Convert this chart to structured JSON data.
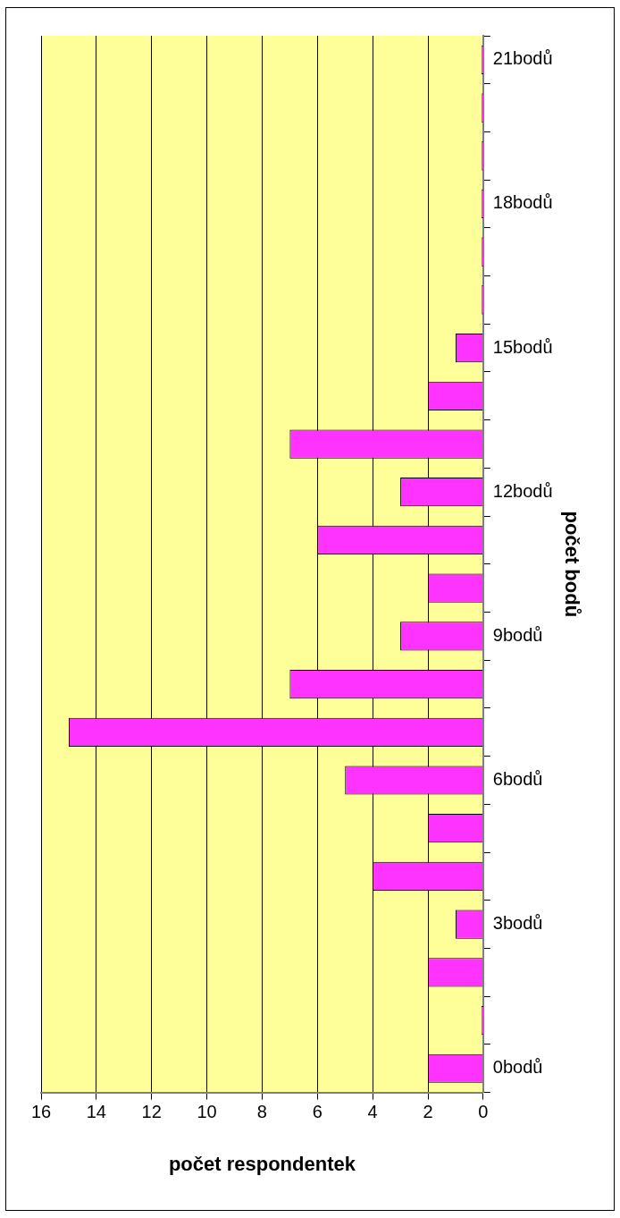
{
  "chart_data": {
    "type": "bar",
    "orientation": "horizontal",
    "xlabel": "počet respondentek",
    "ylabel": "počet bodů",
    "categories": [
      "21bodů",
      null,
      null,
      "18bodů",
      null,
      null,
      "15bodů",
      null,
      null,
      "12bodů",
      null,
      null,
      "9bodů",
      null,
      null,
      "6bodů",
      null,
      null,
      "3bodů",
      null,
      null,
      "0bodů"
    ],
    "values": [
      0,
      0,
      0,
      0,
      0,
      0,
      1,
      2,
      7,
      3,
      6,
      2,
      3,
      7,
      15,
      5,
      2,
      4,
      1,
      2,
      0,
      2
    ],
    "color": "#ff33ff",
    "xlim": [
      16,
      0
    ],
    "xticks": [
      16,
      14,
      12,
      10,
      8,
      6,
      4,
      2,
      0
    ],
    "grid": "x",
    "legend": false
  }
}
